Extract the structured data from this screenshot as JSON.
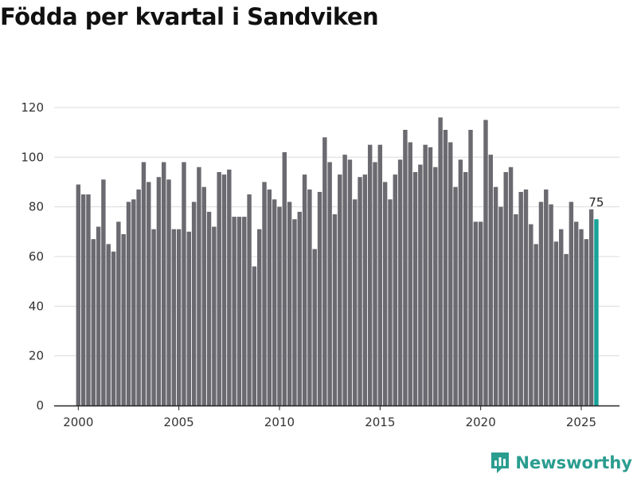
{
  "title": "Födda per kvartal i Sandviken",
  "brand": {
    "name": "Newsworthy",
    "color": "#2a9d8f"
  },
  "chart_data": {
    "type": "bar",
    "x_start": 2000.0,
    "x_step": 0.25,
    "xticks": [
      2000,
      2005,
      2010,
      2015,
      2020,
      2025
    ],
    "yticks": [
      0,
      20,
      40,
      60,
      80,
      100,
      120
    ],
    "ylim": [
      0,
      128
    ],
    "xlim": [
      1998.8,
      2026.9
    ],
    "grid": true,
    "bar_color": "#6b6a70",
    "highlight_color": "#17a398",
    "highlight_label": "75",
    "values": [
      89,
      85,
      85,
      67,
      72,
      91,
      65,
      62,
      74,
      69,
      82,
      83,
      87,
      98,
      90,
      71,
      92,
      98,
      91,
      71,
      71,
      98,
      70,
      82,
      96,
      88,
      78,
      72,
      94,
      93,
      95,
      76,
      76,
      76,
      85,
      56,
      71,
      90,
      87,
      83,
      80,
      102,
      82,
      75,
      78,
      93,
      87,
      63,
      86,
      108,
      98,
      77,
      93,
      101,
      99,
      83,
      92,
      93,
      105,
      98,
      105,
      90,
      83,
      93,
      99,
      111,
      106,
      94,
      97,
      105,
      104,
      96,
      116,
      111,
      106,
      88,
      99,
      94,
      111,
      74,
      74,
      115,
      101,
      88,
      80,
      94,
      96,
      77,
      86,
      87,
      73,
      65,
      82,
      87,
      81,
      66,
      71,
      61,
      82,
      74,
      71,
      67,
      79,
      75
    ]
  }
}
